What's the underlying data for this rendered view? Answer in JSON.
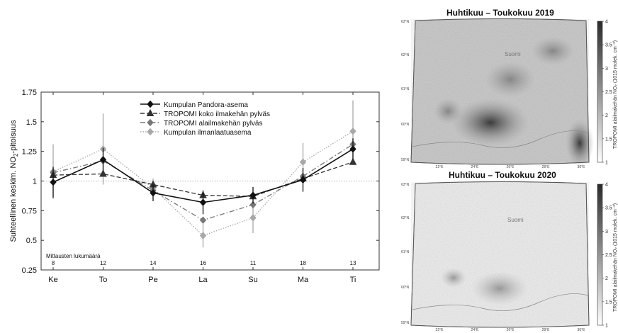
{
  "chart_data": [
    {
      "type": "line",
      "categories": [
        "Ke",
        "To",
        "Pe",
        "La",
        "Su",
        "Ma",
        "Ti"
      ],
      "counts_label": "Mittausten lukumäärä",
      "counts": [
        "8",
        "12",
        "14",
        "16",
        "11",
        "18",
        "13"
      ],
      "ylabel": "Suhteellinen keskim. NO2-pitoisuus",
      "ylim": [
        0.25,
        1.75
      ],
      "yticks": [
        "0.25",
        "0.5",
        "0.75",
        "1",
        "1.25",
        "1.5",
        "1.75"
      ],
      "reference_line": 1,
      "legend_position": "top-center",
      "series": [
        {
          "name": "Kumpulan Pandora-asema",
          "color": "#111111",
          "dash": "solid",
          "marker": "diamond",
          "values": [
            0.99,
            1.18,
            0.9,
            0.82,
            0.88,
            1.01,
            1.27
          ],
          "err": [
            0.13,
            0.1,
            0.07,
            0.1,
            0.07,
            0.1,
            0.09
          ]
        },
        {
          "name": "TROPOMI koko ilmakehän pylväs",
          "color": "#333333",
          "dash": "dashed",
          "marker": "triangle",
          "values": [
            1.05,
            1.06,
            0.97,
            0.88,
            0.87,
            1.02,
            1.16
          ],
          "err": [
            0,
            0,
            0,
            0,
            0,
            0,
            0
          ]
        },
        {
          "name": "TROPOMI alailmakehän pylväs",
          "color": "#777777",
          "dash": "dashdot",
          "marker": "diamond",
          "values": [
            1.07,
            1.17,
            0.92,
            0.67,
            0.8,
            1.04,
            1.31
          ],
          "err": [
            0,
            0,
            0,
            0,
            0,
            0,
            0
          ]
        },
        {
          "name": "Kumpulan ilmanlaatuasema",
          "color": "#a8a8a8",
          "dash": "dotted",
          "marker": "diamond",
          "values": [
            1.08,
            1.27,
            0.94,
            0.54,
            0.69,
            1.16,
            1.42
          ],
          "err": [
            0.23,
            0.3,
            0.08,
            0.1,
            0.13,
            0.16,
            0.26
          ]
        }
      ]
    },
    {
      "type": "heatmap",
      "title": "Huhtikuu – Toukokuu 2019",
      "colorbar_ticks": [
        "4",
        "3.5",
        "3",
        "2.5",
        "2",
        "1.5",
        "1"
      ],
      "colorbar_label": "TROPOMI alailmakehän NO₂ (1015 molek. cm⁻²)",
      "colormap": [
        "#ffffff",
        "#2a2a2a"
      ],
      "lat_labels": [
        "63°N",
        "62°N",
        "61°N",
        "60°N",
        "59°N"
      ],
      "lon_labels": [
        "22°E",
        "24°E",
        "26°E",
        "28°E",
        "30°E"
      ],
      "place_labels": [
        "Suomi"
      ]
    },
    {
      "type": "heatmap",
      "title": "Huhtikuu – Toukokuu 2020",
      "colorbar_ticks": [
        "4",
        "3.5",
        "3",
        "2.5",
        "2",
        "1.5",
        "1"
      ],
      "colorbar_label": "TROPOMI alailmakehän NO₂ (1015 molek. cm⁻²)",
      "colormap": [
        "#ffffff",
        "#2a2a2a"
      ],
      "lat_labels": [
        "63°N",
        "62°N",
        "61°N",
        "60°N",
        "59°N"
      ],
      "lon_labels": [
        "22°E",
        "24°E",
        "26°E",
        "28°E",
        "30°E"
      ],
      "place_labels": [
        "Suomi"
      ]
    }
  ]
}
